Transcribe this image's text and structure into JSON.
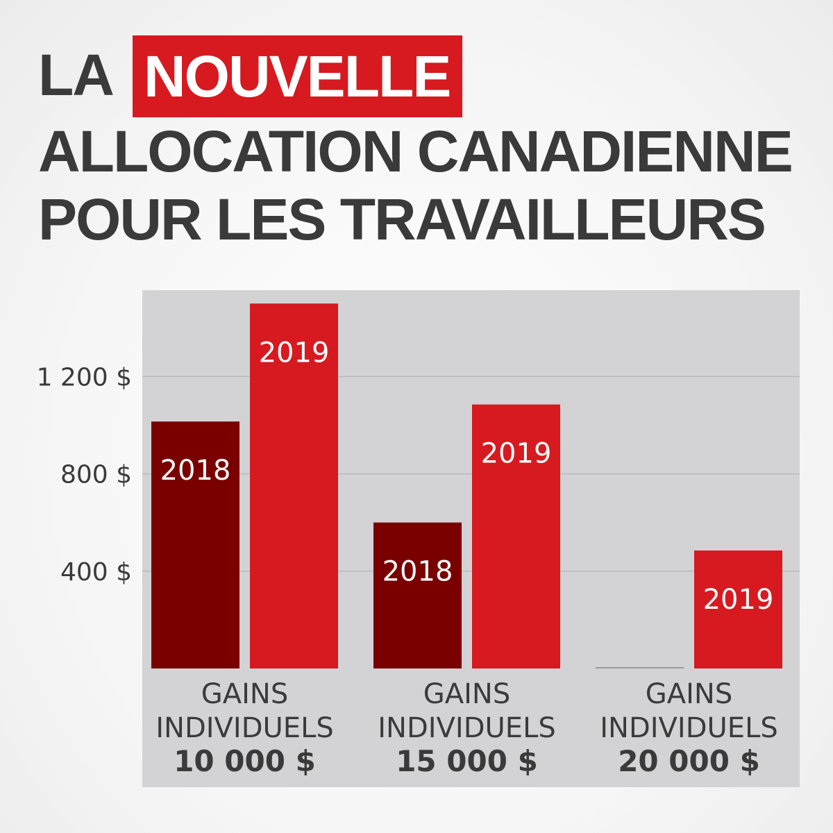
{
  "title": {
    "word1": "LA",
    "highlight": "NOUVELLE",
    "line2": "ALLOCATION CANADIENNE",
    "line3": "POUR LES TRAVAILLEURS"
  },
  "colors": {
    "series_2018": "#7a0000",
    "series_2019": "#d71920",
    "plot_bg": "#d3d3d5",
    "title_highlight": "#d71920"
  },
  "chart_data": {
    "type": "bar",
    "grid": true,
    "ylim": [
      0,
      1500
    ],
    "yticks": [
      400,
      800,
      1200
    ],
    "ytick_labels": [
      "400 $",
      "800 $",
      "1 200 $"
    ],
    "categories": [
      {
        "label_line1": "GAINS",
        "label_line2": "INDIVIDUELS",
        "value_label": "10 000 $"
      },
      {
        "label_line1": "GAINS",
        "label_line2": "INDIVIDUELS",
        "value_label": "15 000 $"
      },
      {
        "label_line1": "GAINS",
        "label_line2": "INDIVIDUELS",
        "value_label": "20 000 $"
      }
    ],
    "series": [
      {
        "name": "2018",
        "values": [
          1015,
          600,
          0
        ]
      },
      {
        "name": "2019",
        "values": [
          1500,
          1085,
          485
        ]
      }
    ]
  }
}
